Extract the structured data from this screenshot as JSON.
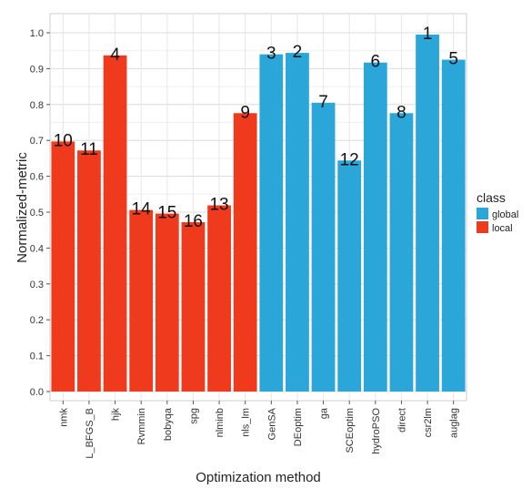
{
  "chart_data": {
    "type": "bar",
    "title": "",
    "xlabel": "Optimization method",
    "ylabel": "Normalized-metric",
    "ylim": [
      0,
      1.0
    ],
    "yticks": [
      0.0,
      0.1,
      0.2,
      0.3,
      0.4,
      0.5,
      0.6,
      0.7,
      0.8,
      0.9,
      1.0
    ],
    "ytick_labels": [
      "0.0",
      "0.1",
      "0.2",
      "0.3",
      "0.4",
      "0.5",
      "0.6",
      "0.7",
      "0.8",
      "0.9",
      "1.0"
    ],
    "grid": true,
    "legend": {
      "title": "class",
      "position": "right",
      "entries": [
        {
          "name": "global",
          "color": "#2aa6d9"
        },
        {
          "name": "local",
          "color": "#f03a1e"
        }
      ]
    },
    "categories": [
      "nmk",
      "L_BFGS_B",
      "hjk",
      "Rvmmin",
      "bobyqa",
      "spg",
      "nlminb",
      "nls_lm",
      "GenSA",
      "DEoptim",
      "ga",
      "SCEoptim",
      "hydroPSO",
      "direct",
      "csr2lm",
      "auglag"
    ],
    "values": [
      0.697,
      0.672,
      0.937,
      0.506,
      0.496,
      0.472,
      0.519,
      0.776,
      0.94,
      0.944,
      0.805,
      0.644,
      0.917,
      0.776,
      0.995,
      0.925
    ],
    "ranks": [
      "10",
      "11",
      "4",
      "14",
      "15",
      "16",
      "13",
      "9",
      "3",
      "2",
      "7",
      "12",
      "6",
      "8",
      "1",
      "5"
    ],
    "classes": [
      "local",
      "local",
      "local",
      "local",
      "local",
      "local",
      "local",
      "local",
      "global",
      "global",
      "global",
      "global",
      "global",
      "global",
      "global",
      "global"
    ]
  }
}
